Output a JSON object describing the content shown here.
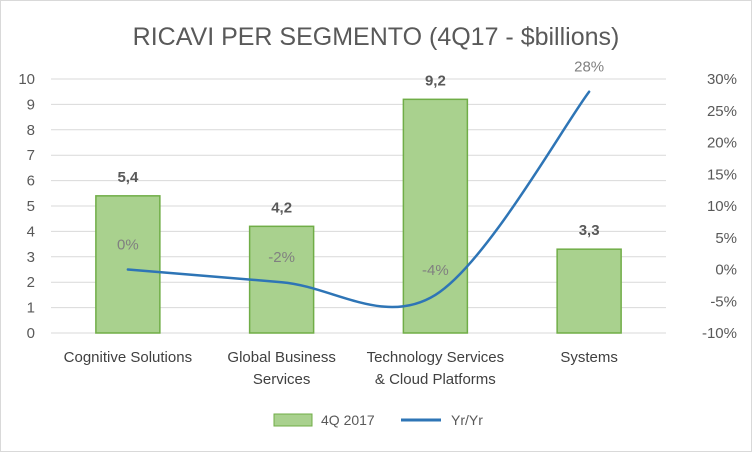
{
  "chart_data": {
    "type": "bar",
    "title": "RICAVI PER SEGMENTO  (4Q17 - $billions)",
    "categories": [
      [
        "Cognitive Solutions"
      ],
      [
        "Global Business",
        "Services"
      ],
      [
        "Technology Services",
        "& Cloud Platforms"
      ],
      [
        "Systems"
      ]
    ],
    "series": [
      {
        "name": "4Q 2017",
        "type": "bar",
        "axis": "left",
        "values": [
          5.4,
          4.2,
          9.2,
          3.3
        ],
        "labels": [
          "5,4",
          "4,2",
          "9,2",
          "3,3"
        ],
        "color": "#a9d18e",
        "border_color": "#70ad47"
      },
      {
        "name": "Yr/Yr",
        "type": "line",
        "axis": "right",
        "values": [
          0,
          -2,
          -4,
          28
        ],
        "labels": [
          "0%",
          "-2%",
          "-4%",
          "28%"
        ],
        "color": "#2e75b6",
        "smooth": true
      }
    ],
    "y_left": {
      "min": 0,
      "max": 10,
      "step": 1,
      "ticks": [
        "0",
        "1",
        "2",
        "3",
        "4",
        "5",
        "6",
        "7",
        "8",
        "9",
        "10"
      ]
    },
    "y_right": {
      "min": -10,
      "max": 30,
      "step": 5,
      "ticks": [
        "-10%",
        "-5%",
        "0%",
        "5%",
        "10%",
        "15%",
        "20%",
        "25%",
        "30%"
      ]
    },
    "grid": true,
    "legend_position": "bottom"
  }
}
